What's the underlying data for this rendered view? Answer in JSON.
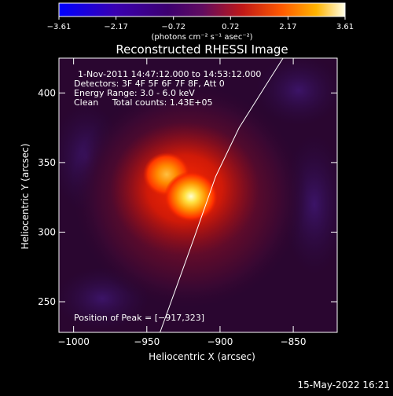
{
  "chart_data": {
    "type": "heatmap",
    "title": "Reconstructed RHESSI Image",
    "xlabel": "Heliocentric X (arcsec)",
    "ylabel": "Heliocentric Y (arcsec)",
    "xlim": [
      -1010,
      -820
    ],
    "ylim": [
      228,
      425
    ],
    "x_ticks": [
      -1000,
      -950,
      -900,
      -850
    ],
    "y_ticks": [
      250,
      300,
      350,
      400
    ],
    "x_tick_labels": [
      "-1000",
      "-950",
      "-900",
      "-850"
    ],
    "y_tick_labels": [
      "250",
      "300",
      "350",
      "400"
    ],
    "colorbar": {
      "range": [
        -3.61,
        3.61
      ],
      "ticks": [
        -3.61,
        -2.17,
        -0.72,
        0.72,
        2.17,
        3.61
      ],
      "tick_labels": [
        "-3.61",
        "-2.17",
        "-0.72",
        "0.72",
        "2.17",
        "3.61"
      ],
      "label": "(photons cm⁻² s⁻¹ asec⁻²)",
      "colormap": [
        "#0000ff",
        "#2a00a0",
        "#38006a",
        "#5a1070",
        "#c02020",
        "#ff6000",
        "#ffb000",
        "#ffffff"
      ]
    },
    "sources": [
      {
        "name": "peak",
        "x": -917,
        "y": 323,
        "value": 3.61
      },
      {
        "name": "secondary",
        "x": -938,
        "y": 338,
        "value": 2.6
      }
    ],
    "annotations": [
      "1-Nov-2011 14:47:12.000 to 14:53:12.000",
      "Detectors: 3F 4F 5F 6F 7F 8F, Att 0",
      "Energy Range: 3.0 - 6.0 keV",
      "Clean     Total counts: 1.43E+05",
      "Position of Peak = [-917,323]"
    ],
    "limb_curve": [
      [
        -941,
        228
      ],
      [
        -930,
        260
      ],
      [
        -918,
        295
      ],
      [
        -903,
        340
      ],
      [
        -887,
        375
      ],
      [
        -869,
        405
      ],
      [
        -857,
        425
      ]
    ]
  },
  "footer": {
    "date": "15-May-2022 16:21"
  }
}
